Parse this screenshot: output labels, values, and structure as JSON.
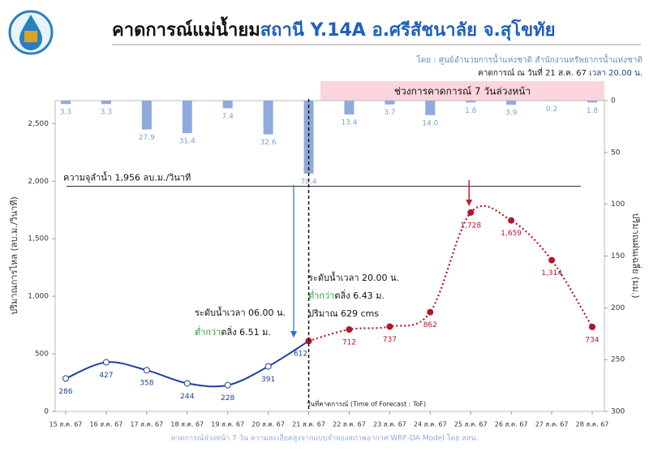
{
  "chart_data": {
    "type": "line",
    "title": {
      "main": "คาดการณ์แม่น้ำยม",
      "station": "สถานี Y.14A อ.ศรีสัชนาลัย จ.สุโขทัย"
    },
    "subtitle": "โดย : ศูนย์อำนวยการน้ำแห่งชาติ สำนักงานทรัพยากรน้ำแห่งชาติ",
    "forecast_time": {
      "date": "คาดการณ์ ณ วันที่ 21 ส.ค. 67",
      "time": "เวลา 20.00 น."
    },
    "forecast_range_label": "ช่วงการคาดการณ์ 7 วันล่วงหน้า",
    "y_label": "ปริมาณการไหล (ลบ.ม./วินาที)",
    "y2_label": "ปริมาณฝนเฉลี่ย (มม.)",
    "tof_label": "วันที่คาดการณ์ (Time of Forecast : ToF)",
    "footer": "คาดการณ์ล่วงหน้า 7 วัน ความละเอียดสูงจากแบบจำลองสภาพอากาศ WRF-DA Model โดย สสน.",
    "categories": [
      "15 ส.ค. 67",
      "16 ส.ค. 67",
      "17 ส.ค. 67",
      "18 ส.ค. 67",
      "19 ส.ค. 67",
      "20 ส.ค. 67",
      "21 ส.ค. 67",
      "22 ส.ค. 67",
      "23 ส.ค. 67",
      "24 ส.ค. 67",
      "25 ส.ค. 67",
      "26 ส.ค. 67",
      "27 ส.ค. 67",
      "28 ส.ค. 67"
    ],
    "series": [
      {
        "name": "observed",
        "color": "#1f3fa0",
        "values": [
          286,
          427,
          358,
          244,
          228,
          391,
          612,
          null,
          null,
          null,
          null,
          null,
          null,
          null
        ],
        "value_labels": [
          "286",
          "427",
          "358",
          "244",
          "228",
          "391",
          "612",
          null,
          null,
          null,
          null,
          null,
          null,
          null
        ]
      },
      {
        "name": "forecast",
        "color": "#b3162a",
        "values": [
          null,
          null,
          null,
          null,
          null,
          null,
          612,
          712,
          737,
          862,
          1728,
          1659,
          1314,
          734
        ],
        "value_labels": [
          null,
          null,
          null,
          null,
          null,
          null,
          null,
          "712",
          "737",
          "862",
          "1,728",
          "1,659",
          "1,314",
          "734"
        ]
      },
      {
        "name": "rainfall",
        "type": "bar",
        "axis": "y2",
        "color": "#8faadc",
        "values": [
          3.3,
          3.3,
          27.9,
          31.4,
          7.4,
          32.6,
          70.4,
          13.4,
          3.7,
          14.0,
          1.8,
          3.9,
          0.2,
          1.8
        ],
        "value_labels": [
          "3.3",
          "3.3",
          "27.9",
          "31.4",
          "7.4",
          "32.6",
          "70.4",
          "13.4",
          "3.7",
          "14.0",
          "1.8",
          "3.9",
          "0.2",
          "1.8"
        ]
      }
    ],
    "threshold": {
      "value": 1956,
      "label": "ความจุลำน้ำ 1,956 ลบ.ม./วินาที"
    },
    "annotations": [
      {
        "line1": "ระดับน้ำเวลา 06.00 น.",
        "green": "ต่ำกว่า",
        "rest": "ตลิ่ง 6.51 ม."
      },
      {
        "line1": "ระดับน้ำเวลา 20.00 น.",
        "green": "ต่ำกว่า",
        "rest": "ตลิ่ง 6.43 ม.",
        "line3": "ปริมาณ 629 cms"
      }
    ],
    "ylim": [
      0,
      2700
    ],
    "yticks": [
      0,
      500,
      {
        "value": 1000,
        "label": "1,000"
      },
      {
        "value": 1500,
        "label": "1,500"
      },
      {
        "value": 2000,
        "label": "2,000"
      },
      {
        "value": 2500,
        "label": "2,500"
      }
    ],
    "y2lim": [
      0,
      300
    ],
    "y2_inverted": true,
    "y2ticks": [
      0,
      50,
      100,
      150,
      200,
      250,
      300
    ]
  }
}
